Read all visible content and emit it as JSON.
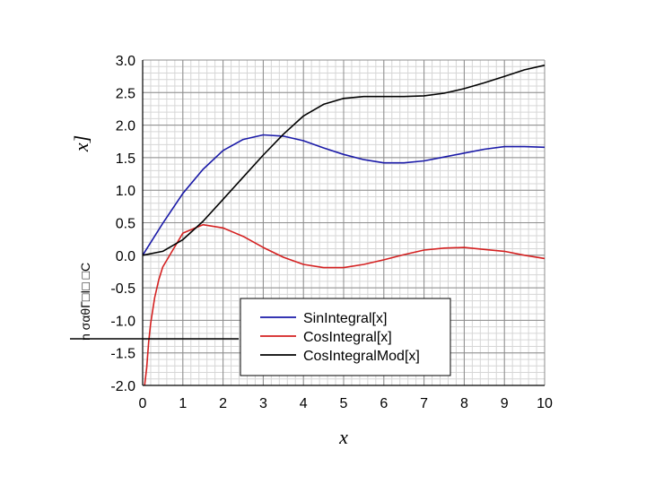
{
  "chart_data": {
    "type": "line",
    "title": "",
    "xlabel": "x",
    "ylabel": "x]",
    "xlim": [
      0,
      10
    ],
    "ylim": [
      -2.0,
      3.0
    ],
    "x_ticks": [
      "0",
      "1",
      "2",
      "3",
      "4",
      "5",
      "6",
      "7",
      "8",
      "9",
      "10"
    ],
    "y_ticks": [
      "3.0",
      "2.5",
      "2.0",
      "1.5",
      "1.0",
      "0.5",
      "0.0",
      "-0.5",
      "-1.0",
      "-1.5",
      "-2.0"
    ],
    "grid": true,
    "legend_position": "bottom-right",
    "x": [
      0,
      0.5,
      1,
      1.5,
      2,
      2.5,
      3,
      3.5,
      4,
      4.5,
      5,
      5.5,
      6,
      6.5,
      7,
      7.5,
      8,
      8.5,
      9,
      9.5,
      10
    ],
    "series": [
      {
        "name": "SinIntegral[x]",
        "color": "#1a1aa8",
        "values": [
          0,
          0.49,
          0.95,
          1.32,
          1.61,
          1.78,
          1.85,
          1.83,
          1.76,
          1.65,
          1.55,
          1.47,
          1.42,
          1.42,
          1.45,
          1.51,
          1.57,
          1.63,
          1.67,
          1.67,
          1.66
        ]
      },
      {
        "name": "CosIntegral[x]",
        "color": "#d42020",
        "values": [
          null,
          -0.18,
          0.34,
          0.47,
          0.42,
          0.29,
          0.12,
          -0.03,
          -0.14,
          -0.19,
          -0.19,
          -0.14,
          -0.07,
          0.01,
          0.08,
          0.11,
          0.12,
          0.09,
          0.06,
          0.0,
          -0.05
        ]
      },
      {
        "name": "CosIntegralMod[x]",
        "color": "#000000",
        "values": [
          0,
          0.06,
          0.24,
          0.52,
          0.86,
          1.2,
          1.54,
          1.86,
          2.14,
          2.32,
          2.41,
          2.44,
          2.44,
          2.44,
          2.45,
          2.49,
          2.56,
          2.65,
          2.75,
          2.85,
          2.92
        ]
      }
    ],
    "cosintegral_near_zero": {
      "x": [
        0.05,
        0.1,
        0.15,
        0.2,
        0.3,
        0.4
      ],
      "values": [
        -2.0,
        -1.73,
        -1.33,
        -1.04,
        -0.65,
        -0.38
      ]
    },
    "stray_glyphs": "n  σαθΓ□Ι□ □C"
  }
}
